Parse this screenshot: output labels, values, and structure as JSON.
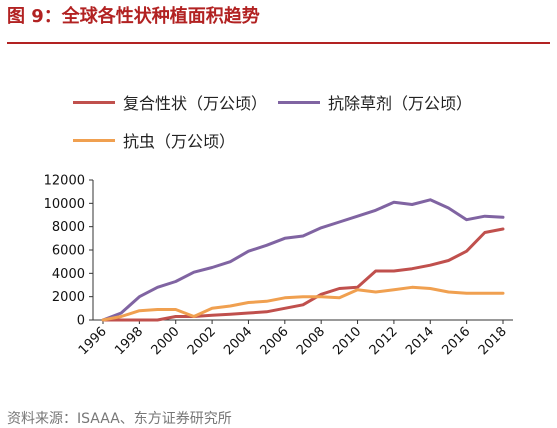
{
  "header": {
    "title": "图 9：全球各性状种植面积趋势"
  },
  "footer": {
    "source": "资料来源：ISAAA、东方证券研究所"
  },
  "chart_data": {
    "type": "line",
    "x": [
      1996,
      1997,
      1998,
      1999,
      2000,
      2001,
      2002,
      2003,
      2004,
      2005,
      2006,
      2007,
      2008,
      2009,
      2010,
      2011,
      2012,
      2013,
      2014,
      2015,
      2016,
      2017,
      2018
    ],
    "x_ticks": [
      "1996",
      "1998",
      "2000",
      "2002",
      "2004",
      "2006",
      "2008",
      "2010",
      "2012",
      "2014",
      "2016",
      "2018"
    ],
    "ylim": [
      0,
      12000
    ],
    "y_ticks": [
      "0",
      "2000",
      "4000",
      "6000",
      "8000",
      "10000",
      "12000"
    ],
    "legend_position": "top",
    "grid": false,
    "series": [
      {
        "name": "复合性状（万公顷）",
        "color": "#c0504d",
        "values": [
          0,
          0,
          0,
          0,
          300,
          300,
          400,
          500,
          600,
          700,
          1000,
          1300,
          2200,
          2700,
          2800,
          4200,
          4200,
          4400,
          4700,
          5100,
          5900,
          7500,
          7800
        ]
      },
      {
        "name": "抗除草剂（万公顷）",
        "color": "#8064a2",
        "values": [
          0,
          600,
          2000,
          2800,
          3300,
          4100,
          4500,
          5000,
          5900,
          6400,
          7000,
          7200,
          7900,
          8400,
          8900,
          9400,
          10100,
          9900,
          10300,
          9600,
          8600,
          8900,
          8800
        ]
      },
      {
        "name": "抗虫（万公顷）",
        "color": "#f0a050",
        "values": [
          0,
          300,
          800,
          900,
          900,
          300,
          1000,
          1200,
          1500,
          1600,
          1900,
          2000,
          2000,
          1900,
          2600,
          2400,
          2600,
          2800,
          2700,
          2400,
          2300,
          2300,
          2300
        ]
      }
    ]
  }
}
